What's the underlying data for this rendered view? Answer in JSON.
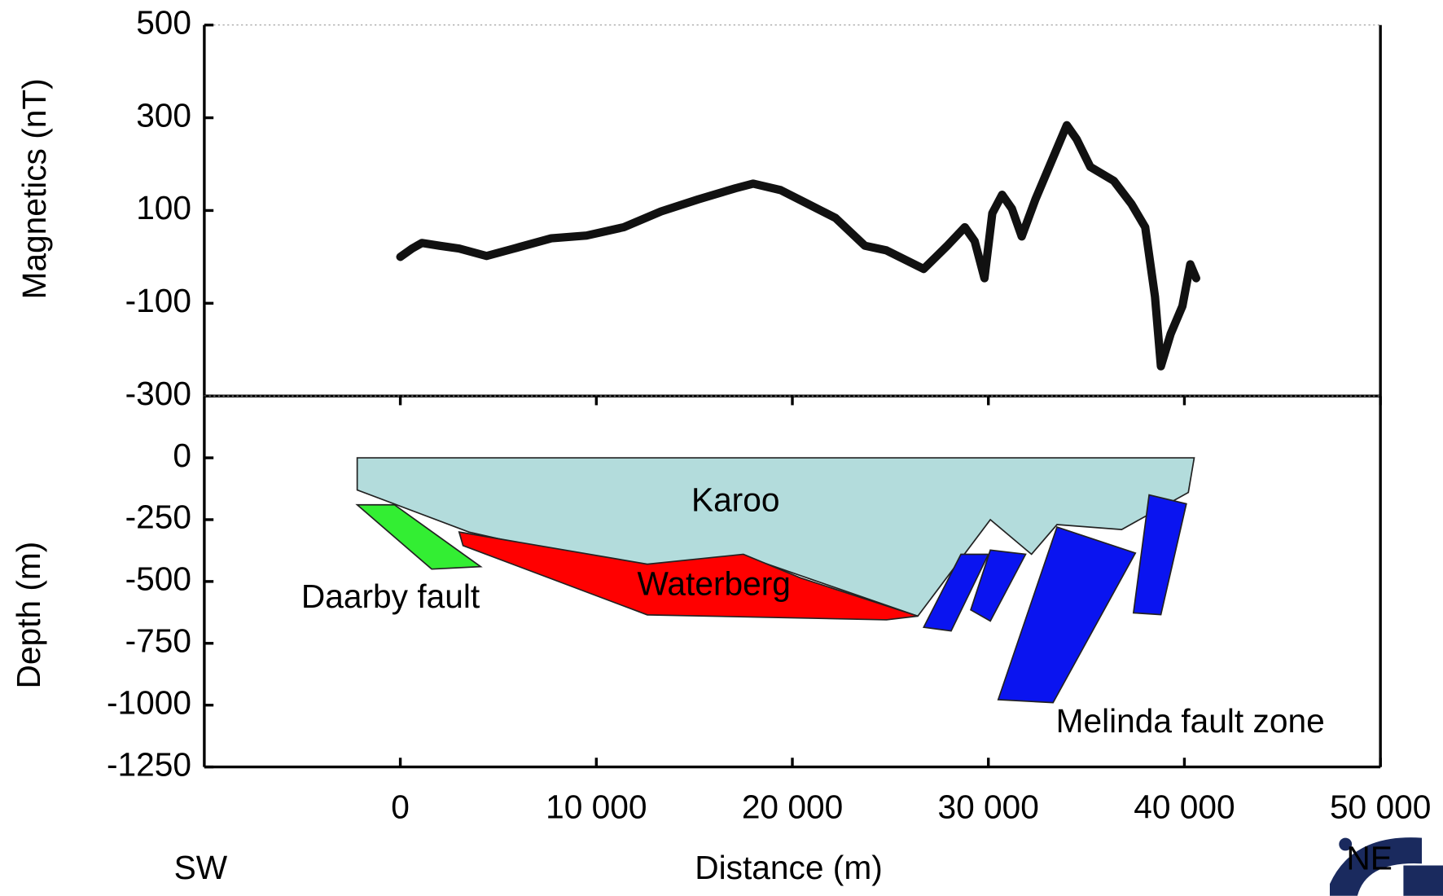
{
  "chart_data": [
    {
      "type": "line",
      "ylabel": "Magnetics (nT)",
      "xlim": [
        -10000,
        50000
      ],
      "ylim": [
        -300,
        500
      ],
      "yticks": [
        500,
        300,
        100,
        -100,
        -300
      ],
      "color": "#111111",
      "x": [
        0,
        600,
        1100,
        2000,
        3000,
        4400,
        5800,
        7700,
        9500,
        11400,
        13300,
        15200,
        17100,
        18000,
        19400,
        20800,
        22200,
        23700,
        24800,
        26700,
        27900,
        28800,
        29300,
        29800,
        30200,
        30700,
        31200,
        31700,
        32400,
        33300,
        34000,
        34500,
        35200,
        36400,
        37300,
        38000,
        38500,
        38800,
        39300,
        39900,
        40300,
        40600
      ],
      "values": [
        0,
        18,
        30,
        24,
        18,
        2,
        18,
        40,
        46,
        64,
        98,
        124,
        148,
        158,
        144,
        114,
        84,
        24,
        14,
        -26,
        24,
        64,
        34,
        -46,
        94,
        134,
        104,
        44,
        124,
        214,
        284,
        254,
        194,
        164,
        114,
        64,
        -86,
        -236,
        -166,
        -106,
        -16,
        -46
      ]
    },
    {
      "type": "polygon",
      "xlabel": "Distance (m)",
      "ylabel": "Depth (m)",
      "xlim": [
        -10000,
        50000
      ],
      "xticks": [
        0,
        {
          "value": 10000,
          "label": "10 000"
        },
        {
          "value": 20000,
          "label": "20 000"
        },
        {
          "value": 30000,
          "label": "30 000"
        },
        {
          "value": 40000,
          "label": "40 000"
        },
        {
          "value": 50000,
          "label": "50 000"
        }
      ],
      "ylim": [
        -1250,
        250
      ],
      "yticks": [
        0,
        -250,
        -500,
        -750,
        -1000,
        -1250
      ],
      "direction_labels": [
        "SW",
        "NE"
      ],
      "polygons": [
        {
          "color": "#b3dcdc",
          "x": [
            -2200,
            40500,
            40200,
            36800,
            33500,
            32200,
            30100,
            26400,
            18000,
            13000,
            3500,
            -2200
          ],
          "values": [
            0,
            0,
            -140,
            -290,
            -270,
            -390,
            -250,
            -640,
            -410,
            -470,
            -300,
            -130
          ]
        },
        {
          "color": "#33ee33",
          "x": [
            -2200,
            -300,
            4100,
            1600
          ],
          "values": [
            -190,
            -190,
            -440,
            -450
          ]
        },
        {
          "color": "#ff0000",
          "x": [
            3000,
            12600,
            17500,
            20400,
            26400,
            24800,
            12600,
            3200
          ],
          "values": [
            -300,
            -430,
            -390,
            -485,
            -640,
            -655,
            -635,
            -355
          ]
        },
        {
          "color": "#0a14f0",
          "x": [
            28600,
            30000,
            28100,
            26700
          ],
          "values": [
            -390,
            -390,
            -700,
            -685
          ]
        },
        {
          "color": "#0a14f0",
          "x": [
            30100,
            31900,
            30100,
            29100
          ],
          "values": [
            -373,
            -390,
            -660,
            -615
          ]
        },
        {
          "color": "#0a14f0",
          "x": [
            33500,
            37500,
            33300,
            30500
          ],
          "values": [
            -280,
            -385,
            -990,
            -978
          ]
        },
        {
          "color": "#0a14f0",
          "x": [
            38200,
            40100,
            38800,
            37400
          ],
          "values": [
            -150,
            -186,
            -634,
            -627
          ]
        }
      ],
      "annotations": [
        {
          "text": "Karoo",
          "x": 17100,
          "y": -180
        },
        {
          "text": "Waterberg",
          "x": 16000,
          "y": -520
        },
        {
          "text": "Daarby fault",
          "x": -500,
          "y": -570
        },
        {
          "text": "Melinda fault zone",
          "x": 40300,
          "y": -1075
        }
      ]
    }
  ]
}
